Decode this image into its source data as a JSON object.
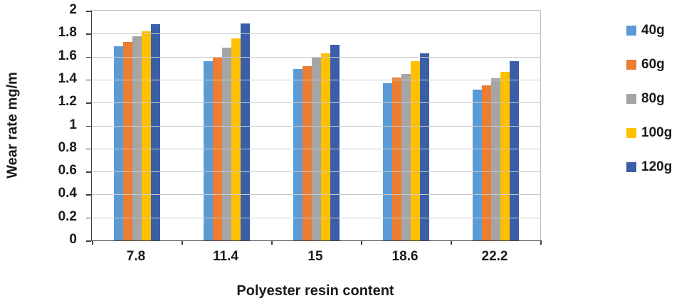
{
  "chart_data": {
    "type": "bar",
    "title": "",
    "xlabel": "Polyester resin content",
    "ylabel": "Wear rate mg/m",
    "categories": [
      "7.8",
      "11.4",
      "15",
      "18.6",
      "22.2"
    ],
    "series": [
      {
        "name": "40g",
        "color": "#5B9BD5",
        "values": [
          1.69,
          1.56,
          1.49,
          1.37,
          1.31
        ]
      },
      {
        "name": "60g",
        "color": "#ED7D31",
        "values": [
          1.73,
          1.6,
          1.52,
          1.42,
          1.35
        ]
      },
      {
        "name": "80g",
        "color": "#A5A5A5",
        "values": [
          1.78,
          1.68,
          1.6,
          1.45,
          1.41
        ]
      },
      {
        "name": "100g",
        "color": "#FFC000",
        "values": [
          1.82,
          1.76,
          1.63,
          1.56,
          1.47
        ]
      },
      {
        "name": "120g",
        "color": "#3A5FA8",
        "values": [
          1.88,
          1.89,
          1.7,
          1.63,
          1.56
        ]
      }
    ],
    "ylim": [
      0,
      2
    ],
    "ytick_step": 0.2,
    "grid": true,
    "legend_position": "right"
  }
}
